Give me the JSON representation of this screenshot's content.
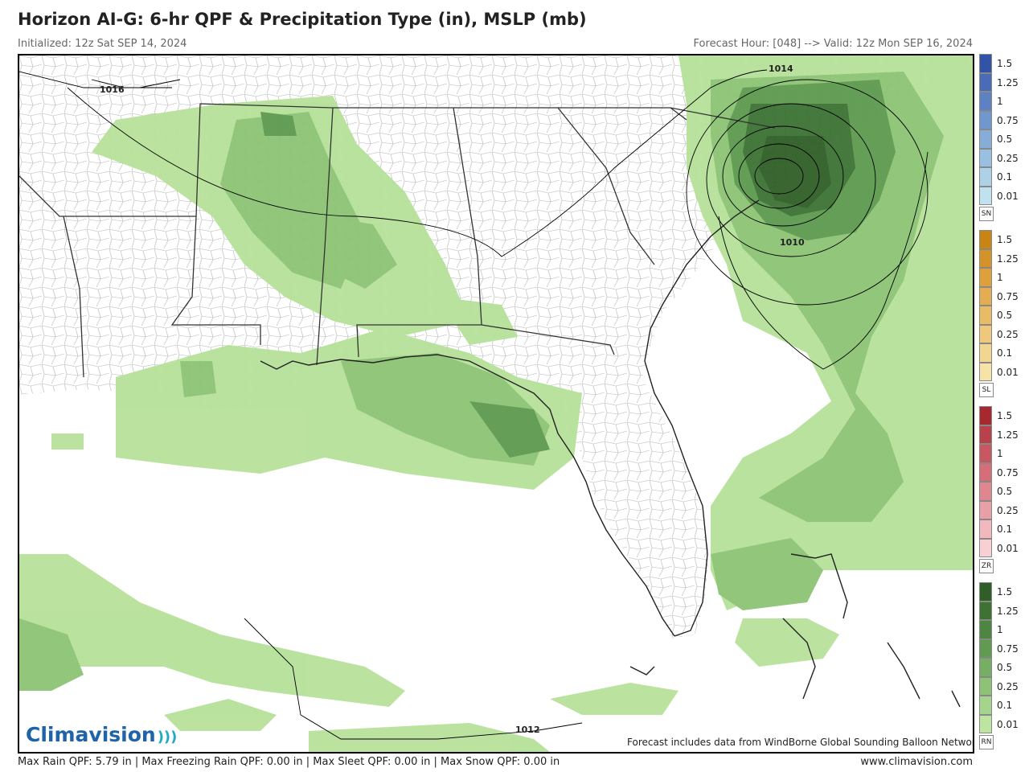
{
  "header": {
    "title": "Horizon AI-G: 6-hr QPF & Precipitation Type (in), MSLP (mb)",
    "initialized": "Initialized: 12z Sat SEP 14, 2024",
    "valid": "Forecast Hour: [048] --> Valid: 12z Mon SEP 16, 2024"
  },
  "map": {
    "isobar_labels": [
      "1016",
      "1014",
      "1010",
      "1012"
    ],
    "credit": "Forecast includes data from WindBorne Global Sounding Balloon Network",
    "logo_text": "Climavision"
  },
  "legend": {
    "ticks": [
      "1.5",
      "1.25",
      "1",
      "0.75",
      "0.5",
      "0.25",
      "0.1",
      "0.01"
    ],
    "groups": [
      {
        "type": "SN",
        "colors": [
          "#3153a8",
          "#4a6cb8",
          "#5d82c4",
          "#7197cf",
          "#86acd8",
          "#99c0e0",
          "#add2e8",
          "#c0e2ef"
        ]
      },
      {
        "type": "SL",
        "colors": [
          "#c98414",
          "#d49229",
          "#de9f3d",
          "#e5ad52",
          "#eabb67",
          "#efc87c",
          "#f3d592",
          "#f7e2a8"
        ]
      },
      {
        "type": "ZR",
        "colors": [
          "#a8282f",
          "#b94149",
          "#c75760",
          "#d56e78",
          "#e0868f",
          "#e99fa6",
          "#f1b8bd",
          "#f8d0d3"
        ]
      },
      {
        "type": "RN",
        "colors": [
          "#2f5e26",
          "#3d7233",
          "#4e8641",
          "#619a51",
          "#76ae63",
          "#8dc277",
          "#a5d48c",
          "#bce5a2"
        ]
      }
    ]
  },
  "footer": {
    "left": "Max Rain QPF: 5.79 in  |  Max Freezing Rain QPF: 0.00 in  |  Max Sleet QPF: 0.00 in  |  Max Snow QPF: 0.00 in",
    "right": "www.climavision.com"
  },
  "colors": {
    "rain_light": "#b7e19a",
    "rain_med": "#8cc474",
    "rain_dark": "#5d9a4f",
    "rain_vdark": "#2f5e26",
    "isobar": "#000000",
    "county_line": "#9a9a9a",
    "state_line": "#333333"
  }
}
